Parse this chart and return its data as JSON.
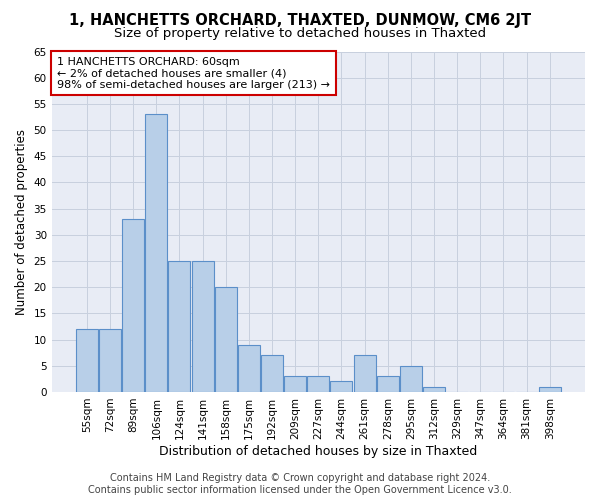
{
  "title": "1, HANCHETTS ORCHARD, THAXTED, DUNMOW, CM6 2JT",
  "subtitle": "Size of property relative to detached houses in Thaxted",
  "xlabel": "Distribution of detached houses by size in Thaxted",
  "ylabel": "Number of detached properties",
  "categories": [
    "55sqm",
    "72sqm",
    "89sqm",
    "106sqm",
    "124sqm",
    "141sqm",
    "158sqm",
    "175sqm",
    "192sqm",
    "209sqm",
    "227sqm",
    "244sqm",
    "261sqm",
    "278sqm",
    "295sqm",
    "312sqm",
    "329sqm",
    "347sqm",
    "364sqm",
    "381sqm",
    "398sqm"
  ],
  "values": [
    12,
    12,
    33,
    53,
    25,
    25,
    20,
    9,
    7,
    3,
    3,
    2,
    7,
    3,
    5,
    1,
    0,
    0,
    0,
    0,
    1
  ],
  "bar_color": "#b8cfe8",
  "bar_edge_color": "#5b8fc9",
  "annotation_text": "1 HANCHETTS ORCHARD: 60sqm\n← 2% of detached houses are smaller (4)\n98% of semi-detached houses are larger (213) →",
  "annotation_box_edge_color": "#cc0000",
  "ylim": [
    0,
    65
  ],
  "yticks": [
    0,
    5,
    10,
    15,
    20,
    25,
    30,
    35,
    40,
    45,
    50,
    55,
    60,
    65
  ],
  "grid_color": "#c8d0de",
  "bg_color": "#e8ecf5",
  "footer_text": "Contains HM Land Registry data © Crown copyright and database right 2024.\nContains public sector information licensed under the Open Government Licence v3.0.",
  "title_fontsize": 10.5,
  "subtitle_fontsize": 9.5,
  "xlabel_fontsize": 9,
  "ylabel_fontsize": 8.5,
  "tick_fontsize": 7.5,
  "annotation_fontsize": 8,
  "footer_fontsize": 7
}
